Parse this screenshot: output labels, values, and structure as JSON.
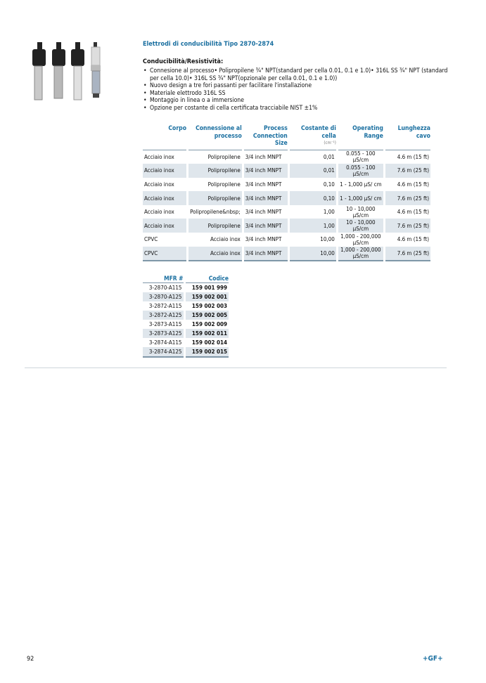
{
  "title": "Elettrodi di conducibilità Tipo 2870-2874",
  "subtitle": "Conducibilità/Resistività:",
  "bullets": [
    "Connesione al processo• Polipropilene ¾\" NPT(standard per cella 0.01, 0.1 e 1.0)• 316L SS ¾\" NPT (standard per cella 10.0)• 316L SS ¾\" NPT(opzionale per cella 0.01, 0.1 e 1.0))",
    "Nuovo design a tre fori passanti per facilitare l'installazione",
    "Materiale elettrodo 316L SS",
    "Montaggio in linea o a immersione",
    "Opzione per costante di cella certificata tracciabile NIST ±1%"
  ],
  "spec_table": {
    "headers": [
      "Corpo",
      "Connessione al processo",
      "Process Connection Size",
      "Costante di cella",
      "Operating Range",
      "Lunghezza cavo"
    ],
    "unit": "(cm⁻¹)",
    "rows": [
      [
        "Acciaio inox",
        "Polipropilene",
        "3/4 inch MNPT",
        "0,01",
        "0.055 - 100 µS/cm",
        "4.6 m (15 ft)"
      ],
      [
        "Acciaio inox",
        "Polipropilene",
        "3/4 inch MNPT",
        "0,01",
        "0.055 - 100 µS/cm",
        "7.6 m (25 ft)"
      ],
      [
        "Acciaio inox",
        "Polipropilene",
        "3/4 inch MNPT",
        "0,10",
        "1 - 1,000 µS/ cm",
        "4.6 m (15 ft)"
      ],
      [
        "Acciaio inox",
        "Polipropilene",
        "3/4 inch MNPT",
        "0,10",
        "1 - 1,000 µS/ cm",
        "7.6 m (25 ft)"
      ],
      [
        "Acciaio inox",
        "Polipropilene&nbsp;",
        "3/4 inch MNPT",
        "1,00",
        "10 - 10,000 µS/cm",
        "4.6 m (15 ft)"
      ],
      [
        "Acciaio inox",
        "Polipropilene",
        "3/4 inch MNPT",
        "1,00",
        "10 - 10,000 µS/cm",
        "7.6 m (25 ft)"
      ],
      [
        "CPVC",
        "Acciaio inox",
        "3/4 inch MNPT",
        "10,00",
        "1,000 - 200,000 µS/cm",
        "4.6 m (15 ft)"
      ],
      [
        "CPVC",
        "Acciaio inox",
        "3/4 inch MNPT",
        "10,00",
        "1,000 - 200,000 µS/cm",
        "7.6 m (25 ft)"
      ]
    ]
  },
  "mfr_table": {
    "headers": [
      "MFR #",
      "Codice"
    ],
    "rows": [
      [
        "3-2870-A115",
        "159 001 999"
      ],
      [
        "3-2870-A125",
        "159 002 001"
      ],
      [
        "3-2872-A115",
        "159 002 003"
      ],
      [
        "3-2872-A125",
        "159 002 005"
      ],
      [
        "3-2873-A115",
        "159 002 009"
      ],
      [
        "3-2873-A125",
        "159 002 011"
      ],
      [
        "3-2874-A115",
        "159 002 014"
      ],
      [
        "3-2874-A125",
        "159 002 015"
      ]
    ]
  },
  "page_number": "92",
  "logo": "+GF+",
  "colors": {
    "accent": "#1a6fa0",
    "row_alt": "#dfe6ec"
  }
}
